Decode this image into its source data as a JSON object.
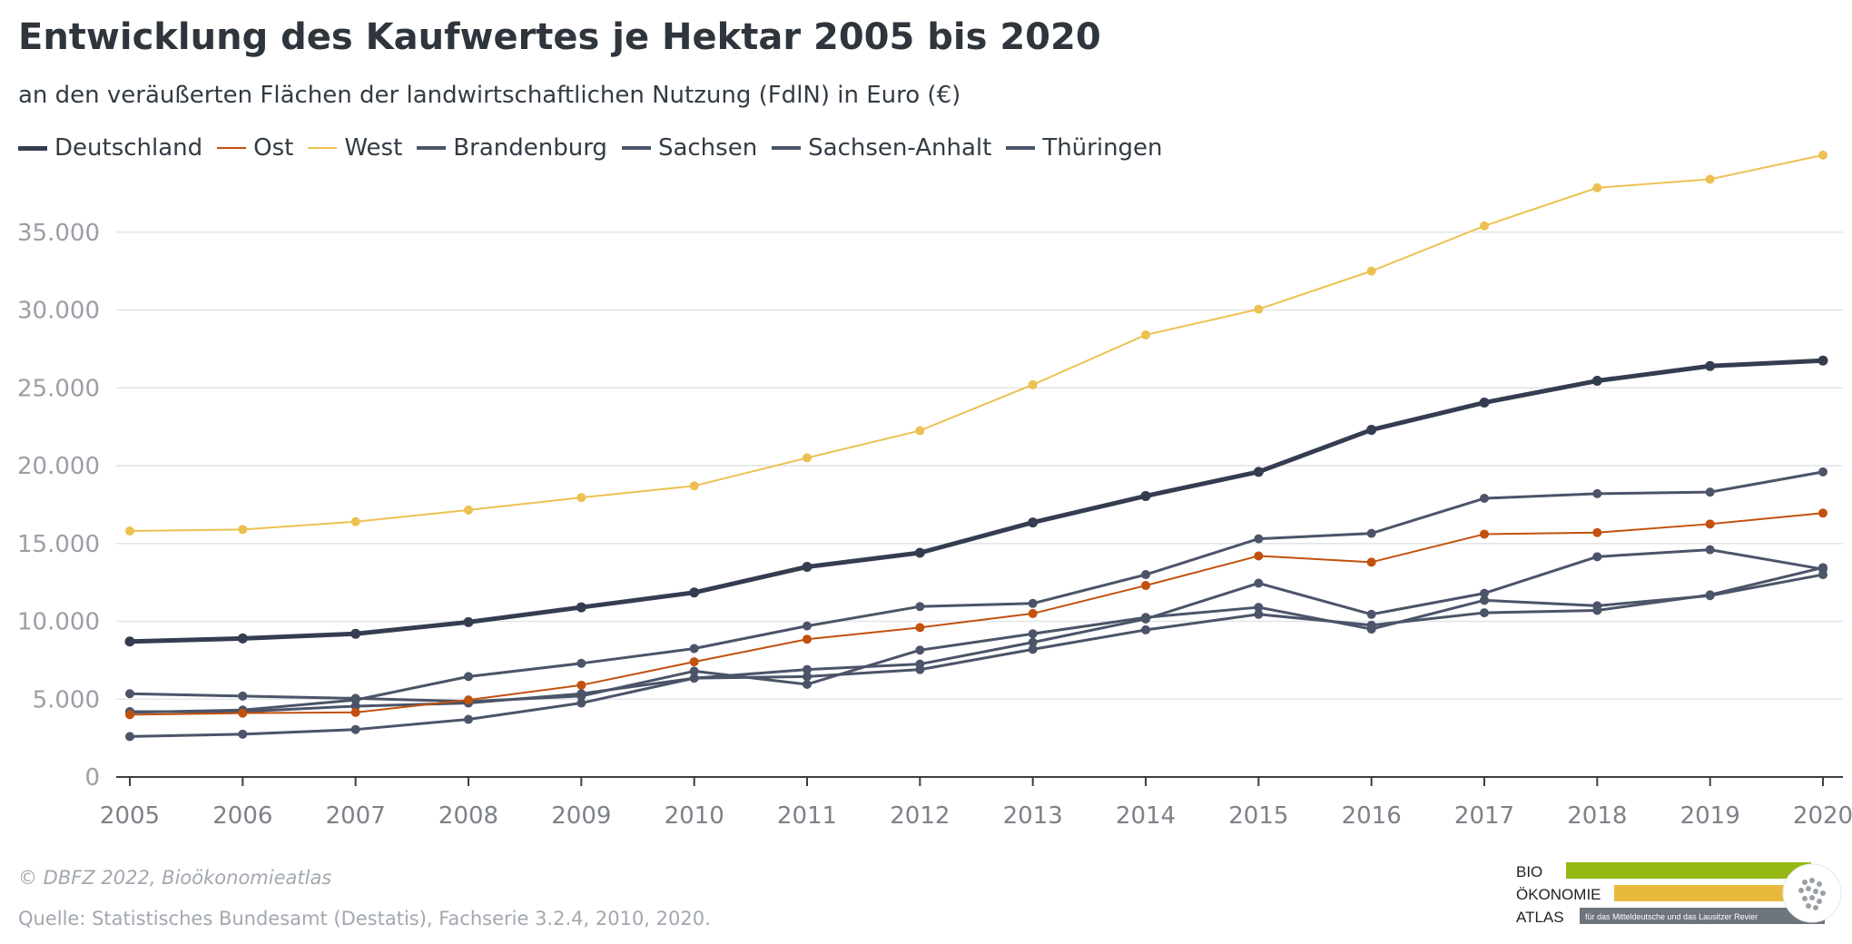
{
  "title": "Entwicklung des Kaufwertes je Hektar 2005 bis 2020",
  "subtitle": "an den veräußerten Flächen der landwirtschaftlichen Nutzung (FdlN) in Euro (€)",
  "footer": {
    "credit": "© DBFZ 2022, Bioökonomieatlas",
    "source": "Quelle: Statistisches Bundesamt (Destatis), Fachserie 3.2.4, 2010, 2020."
  },
  "logo": {
    "line1": "BIO",
    "line2": "ÖKONOMIE",
    "line3": "ATLAS",
    "tagline": "für das Mitteldeutsche und das Lausitzer Revier",
    "colors": {
      "green": "#94b814",
      "yellow": "#e8b93c",
      "gray": "#6e747c"
    }
  },
  "chart_data": {
    "type": "line",
    "x": [
      "2005",
      "2006",
      "2007",
      "2008",
      "2009",
      "2010",
      "2011",
      "2012",
      "2013",
      "2014",
      "2015",
      "2016",
      "2017",
      "2018",
      "2019",
      "2020"
    ],
    "ylim": [
      0,
      40000
    ],
    "yticks": [
      0,
      5000,
      10000,
      15000,
      20000,
      25000,
      30000,
      35000
    ],
    "ytick_labels": [
      "0",
      "5.000",
      "10.000",
      "15.000",
      "20.000",
      "25.000",
      "30.000",
      "35.000"
    ],
    "grid": true,
    "legend_position": "top-left",
    "series": [
      {
        "name": "Deutschland",
        "color": "#343d50",
        "width": 5,
        "values": [
          8700,
          8900,
          9200,
          9950,
          10900,
          11850,
          13500,
          14400,
          16350,
          18050,
          19600,
          22300,
          24050,
          25450,
          26400,
          26750
        ]
      },
      {
        "name": "Ost",
        "color": "#c2510e",
        "width": 2,
        "values": [
          4000,
          4100,
          4150,
          4950,
          5900,
          7400,
          8850,
          9600,
          10500,
          12300,
          14200,
          13800,
          15600,
          15700,
          16250,
          16950
        ]
      },
      {
        "name": "West",
        "color": "#edc151",
        "width": 2,
        "values": [
          15800,
          15900,
          16400,
          17150,
          17950,
          18700,
          20500,
          22250,
          25200,
          28400,
          30050,
          32500,
          35400,
          37850,
          38400,
          39950
        ]
      },
      {
        "name": "Brandenburg",
        "color": "#4b5468",
        "width": 3,
        "values": [
          2600,
          2750,
          3050,
          3700,
          4750,
          6350,
          6450,
          6900,
          8200,
          9450,
          10450,
          9750,
          10550,
          10700,
          11700,
          13450
        ]
      },
      {
        "name": "Sachsen",
        "color": "#4b5468",
        "width": 3,
        "values": [
          5350,
          5200,
          5050,
          4850,
          5200,
          6800,
          5950,
          8150,
          9200,
          10250,
          10900,
          9500,
          11350,
          11000,
          11650,
          13000
        ]
      },
      {
        "name": "Sachsen-Anhalt",
        "color": "#4b5468",
        "width": 3,
        "values": [
          4150,
          4300,
          4950,
          6450,
          7300,
          8250,
          9700,
          10950,
          11150,
          13000,
          15300,
          15650,
          17900,
          18200,
          18300,
          19600
        ]
      },
      {
        "name": "Thüringen",
        "color": "#4b5468",
        "width": 3,
        "values": [
          4200,
          4200,
          4550,
          4750,
          5350,
          6350,
          6900,
          7250,
          8650,
          10150,
          12450,
          10450,
          11800,
          14150,
          14600,
          13350
        ]
      }
    ]
  }
}
